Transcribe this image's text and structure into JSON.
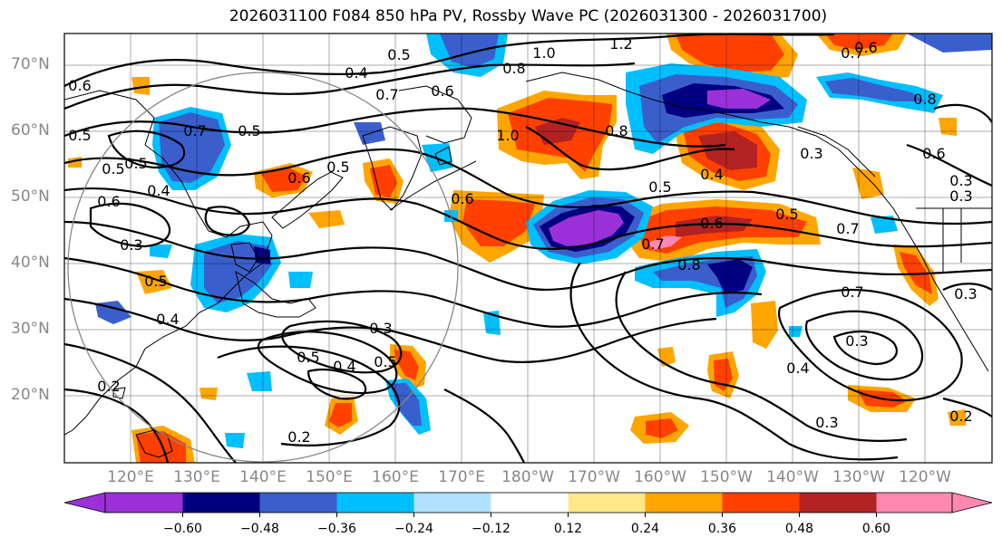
{
  "title": "2026031100 F084 850 hPa PV, Rossby Wave PC (2026031300 - 2026031700)",
  "lat_labels": [
    "70°N",
    "60°N",
    "50°N",
    "40°N",
    "30°N",
    "20°N"
  ],
  "lon_labels": [
    "120°E",
    "130°E",
    "140°E",
    "150°E",
    "160°E",
    "170°E",
    "180°W",
    "170°W",
    "160°W",
    "150°W",
    "140°W",
    "130°W",
    "120°W"
  ],
  "contour_labels": [
    "1.2",
    "0.6",
    "0.7",
    "1.0",
    "0.8",
    "0.5",
    "0.4",
    "0.7",
    "0.6",
    "0.6",
    "0.7",
    "1.0",
    "0.5",
    "0.8",
    "0.8",
    "0.4",
    "0.5",
    "0.6",
    "0.5",
    "0.5",
    "0.4",
    "0.5",
    "0.3",
    "0.6",
    "0.3",
    "0.5",
    "0.6",
    "0.5",
    "0.4",
    "0.6",
    "0.5",
    "0.3",
    "0.4",
    "0.5",
    "0.7",
    "0.8",
    "0.3",
    "0.3",
    "0.4",
    "0.5",
    "0.3",
    "0.6",
    "0.7",
    "0.3",
    "0.3",
    "0.2",
    "0.2",
    "0.2",
    "0.7"
  ],
  "colorbar": {
    "colors": [
      "#9b30d9",
      "#000080",
      "#3a5fcd",
      "#00bfff",
      "#b0e2ff",
      "#ffffff",
      "#ffe88a",
      "#ffa500",
      "#ff4000",
      "#b22222",
      "#ff88b0"
    ],
    "ticks": [
      "−0.60",
      "−0.48",
      "−0.36",
      "−0.24",
      "−0.12",
      "0.12",
      "0.24",
      "0.36",
      "0.48",
      "0.60"
    ]
  }
}
